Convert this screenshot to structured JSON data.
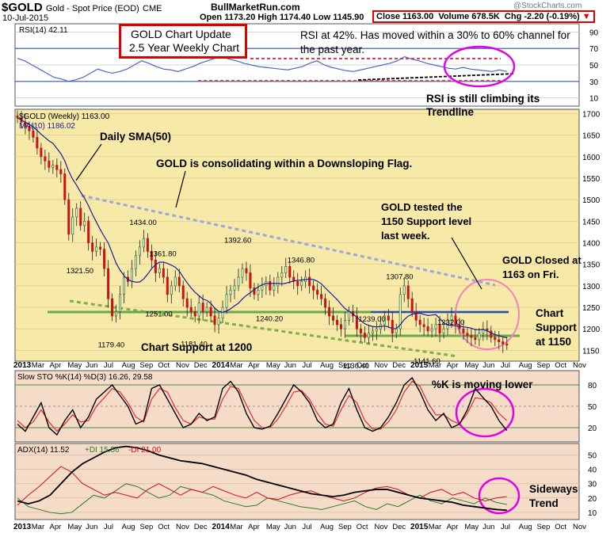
{
  "header": {
    "symbol": "$GOLD",
    "name": "Gold - Spot Price (EOD)",
    "exchange": "CME",
    "date": "10-Jul-2015",
    "source": "BullMarketRun.com",
    "open_label": "Open",
    "open": "1173.20",
    "high_label": "High",
    "high": "1174.40",
    "low_label": "Low",
    "low": "1145.90",
    "close_label": "Close",
    "close": "1163.00",
    "volume_label": "Volume",
    "volume": "678.5K",
    "chg_label": "Chg",
    "chg": "-2.20 (-0.19%)",
    "watermark": "@StockCharts.com"
  },
  "colors": {
    "price_bg": "#f7e9a8",
    "ind_bg": "#f5dcc9",
    "red_box": "#e00000",
    "rsi_line": "#4a66c8",
    "ma_line": "#1c1c9c",
    "support": "#6aa84f",
    "flag": "#9fa6d8",
    "magenta": "#e400e4",
    "up_candle": "#3a7d2e",
    "down_candle": "#d01010"
  },
  "annotations": {
    "update_title_1": "GOLD Chart Update",
    "update_title_2": "2.5 Year Weekly Chart",
    "rsi_note_1": "RSI at 42%. Has moved within a 30% to 60% channel for",
    "rsi_note_2": "the past year.",
    "rsi_climb_1": "RSI is still climbing its",
    "rsi_climb_2": "Trendline",
    "sma_note": "Daily SMA(50)",
    "flag_note": "GOLD is consolidating within a Downsloping Flag.",
    "tested_1": "GOLD tested the",
    "tested_2": "1150 Support level",
    "tested_3": "last week.",
    "closed_1": "GOLD Closed at",
    "closed_2": "1163 on Fri.",
    "support_1150_1": "Chart",
    "support_1150_2": "Support",
    "support_1150_3": "at 1150",
    "support_1200": "Chart Support at 1200",
    "k_lower": "%K is moving lower",
    "sideways_1": "Sideways",
    "sideways_2": "Trend"
  },
  "chart_data": [
    {
      "type": "line",
      "panel": "RSI",
      "legend": "RSI(14) 42.11",
      "ylim": [
        0,
        100
      ],
      "y_ticks": [
        10,
        30,
        50,
        70,
        90
      ],
      "x_range": [
        "2013-01",
        "2015-11"
      ],
      "series": [
        {
          "name": "RSI(14)",
          "values": [
            58,
            55,
            50,
            45,
            40,
            35,
            33,
            30,
            32,
            35,
            40,
            45,
            42,
            40,
            42,
            45,
            50,
            55,
            52,
            48,
            45,
            44,
            42,
            45,
            48,
            52,
            55,
            58,
            60,
            57,
            55,
            52,
            50,
            48,
            47,
            46,
            45,
            44,
            46,
            48,
            52,
            55,
            50,
            47,
            45,
            43,
            42,
            44,
            46,
            48,
            50,
            52,
            55,
            60,
            57,
            55,
            52,
            50,
            48,
            46,
            45,
            47,
            45,
            44,
            43,
            42,
            44,
            42
          ]
        }
      ]
    },
    {
      "type": "candlestick",
      "panel": "Price",
      "legend_price": "$GOLD (Weekly) 1163.00",
      "legend_ma": "MA(10) 1186.02",
      "ylim": [
        1125,
        1710
      ],
      "y_ticks": [
        1150,
        1200,
        1250,
        1300,
        1350,
        1400,
        1450,
        1500,
        1550,
        1600,
        1650,
        1700
      ],
      "x_tick_labels": [
        "2013",
        "Mar",
        "Apr",
        "May",
        "Jun",
        "Jul",
        "Aug",
        "Sep",
        "Oct",
        "Nov",
        "Dec",
        "2014",
        "Mar",
        "Apr",
        "May",
        "Jun",
        "Jul",
        "Aug",
        "Sep",
        "Oct",
        "Nov",
        "Dec",
        "2015",
        "Mar",
        "Apr",
        "May",
        "Jun",
        "Jul",
        "Aug",
        "Sep",
        "Oct",
        "Nov"
      ],
      "x_range": [
        "2013-01",
        "2015-11"
      ],
      "close": [
        1690,
        1680,
        1670,
        1660,
        1645,
        1620,
        1600,
        1590,
        1575,
        1580,
        1570,
        1560,
        1500,
        1420,
        1460,
        1480,
        1440,
        1450,
        1400,
        1380,
        1390,
        1385,
        1340,
        1270,
        1230,
        1240,
        1280,
        1320,
        1310,
        1340,
        1370,
        1390,
        1410,
        1380,
        1360,
        1330,
        1340,
        1320,
        1280,
        1300,
        1320,
        1300,
        1270,
        1250,
        1240,
        1230,
        1260,
        1240,
        1250,
        1230,
        1210,
        1225,
        1250,
        1280,
        1290,
        1300,
        1320,
        1340,
        1330,
        1295,
        1280,
        1290,
        1300,
        1310,
        1290,
        1300,
        1320,
        1330,
        1345,
        1320,
        1310,
        1300,
        1310,
        1320,
        1300,
        1290,
        1280,
        1270,
        1250,
        1230,
        1220,
        1210,
        1200,
        1220,
        1240,
        1230,
        1200,
        1190,
        1180,
        1190,
        1195,
        1200,
        1210,
        1230,
        1220,
        1190,
        1200,
        1280,
        1300,
        1270,
        1240,
        1220,
        1210,
        1205,
        1195,
        1200,
        1210,
        1190,
        1200,
        1220,
        1230,
        1210,
        1200,
        1190,
        1185,
        1180,
        1175,
        1190,
        1200,
        1195,
        1180,
        1175,
        1170,
        1165,
        1163
      ],
      "labels": [
        {
          "text": "1321.50",
          "x_index": 16,
          "y": 1321.5
        },
        {
          "text": "1179.40",
          "x_index": 24,
          "y": 1179.4
        },
        {
          "text": "1434.00",
          "x_index": 32,
          "y": 1434
        },
        {
          "text": "1361.80",
          "x_index": 37,
          "y": 1361.8
        },
        {
          "text": "1251.00",
          "x_index": 36,
          "y": 1251
        },
        {
          "text": "1181.40",
          "x_index": 45,
          "y": 1181.4
        },
        {
          "text": "1392.60",
          "x_index": 56,
          "y": 1392.6
        },
        {
          "text": "1240.20",
          "x_index": 64,
          "y": 1240.2
        },
        {
          "text": "1346.80",
          "x_index": 72,
          "y": 1346.8
        },
        {
          "text": "1239.00",
          "x_index": 90,
          "y": 1239
        },
        {
          "text": "1130.40",
          "x_index": 86,
          "y": 1130.4
        },
        {
          "text": "1307.80",
          "x_index": 97,
          "y": 1307.8
        },
        {
          "text": "1141.60",
          "x_index": 104,
          "y": 1141.6
        },
        {
          "text": "1232.00",
          "x_index": 110,
          "y": 1232
        }
      ]
    },
    {
      "type": "line",
      "panel": "Slow STO",
      "legend": "Slow STO %K(14) %D(3) 16.26, 29.58",
      "ylim": [
        0,
        100
      ],
      "y_ticks": [
        20,
        50,
        80
      ],
      "x_range": [
        "2013-01",
        "2015-11"
      ],
      "series": [
        {
          "name": "%K(14)",
          "values": [
            25,
            15,
            35,
            55,
            20,
            10,
            30,
            45,
            20,
            35,
            60,
            70,
            80,
            65,
            50,
            25,
            30,
            75,
            80,
            60,
            40,
            20,
            25,
            40,
            30,
            35,
            75,
            85,
            70,
            40,
            20,
            18,
            22,
            40,
            60,
            80,
            70,
            55,
            30,
            20,
            25,
            55,
            75,
            45,
            20,
            15,
            20,
            35,
            55,
            80,
            90,
            70,
            45,
            30,
            40,
            20,
            25,
            45,
            75,
            62,
            50,
            30,
            16
          ]
        },
        {
          "name": "%D(3)",
          "values": [
            30,
            20,
            28,
            45,
            28,
            15,
            25,
            38,
            28,
            30,
            50,
            62,
            75,
            70,
            55,
            35,
            28,
            60,
            75,
            70,
            48,
            30,
            25,
            35,
            32,
            32,
            60,
            78,
            75,
            52,
            30,
            20,
            20,
            32,
            50,
            70,
            72,
            60,
            40,
            25,
            22,
            45,
            65,
            55,
            30,
            18,
            18,
            28,
            45,
            70,
            85,
            78,
            55,
            38,
            38,
            30,
            25,
            40,
            62,
            60,
            55,
            40,
            30
          ]
        }
      ]
    },
    {
      "type": "line",
      "panel": "ADX",
      "legend_adx": "ADX(14) 11.52",
      "legend_pdi": "+DI 15.56",
      "legend_mdi": "-DI 21.00",
      "ylim": [
        5,
        58
      ],
      "y_ticks": [
        10,
        20,
        30,
        40,
        50
      ],
      "x_range": [
        "2013-01",
        "2015-11"
      ],
      "series": [
        {
          "name": "ADX(14)",
          "values": [
            18,
            16,
            18,
            22,
            30,
            38,
            44,
            48,
            52,
            55,
            56,
            55,
            53,
            50,
            48,
            46,
            45,
            44,
            42,
            40,
            38,
            36,
            33,
            31,
            29,
            27,
            25,
            23,
            22,
            21,
            22,
            24,
            25,
            26,
            26,
            24,
            22,
            20,
            19,
            18,
            17,
            15,
            14,
            13,
            12,
            11.5
          ]
        },
        {
          "name": "+DI",
          "values": [
            20,
            14,
            12,
            10,
            9,
            10,
            16,
            22,
            20,
            25,
            30,
            28,
            24,
            20,
            22,
            28,
            26,
            24,
            22,
            18,
            16,
            14,
            15,
            20,
            18,
            16,
            14,
            13,
            12,
            14,
            16,
            18,
            14,
            12,
            16,
            14,
            18,
            22,
            18,
            16,
            20,
            18,
            16,
            20,
            17,
            15.56
          ]
        },
        {
          "name": "-DI",
          "values": [
            15,
            22,
            28,
            35,
            42,
            38,
            30,
            26,
            22,
            24,
            22,
            20,
            26,
            30,
            26,
            22,
            26,
            24,
            28,
            25,
            22,
            20,
            24,
            20,
            19,
            22,
            24,
            25,
            22,
            20,
            18,
            20,
            24,
            27,
            28,
            26,
            22,
            20,
            24,
            26,
            22,
            24,
            20,
            18,
            20,
            21
          ]
        }
      ]
    }
  ]
}
